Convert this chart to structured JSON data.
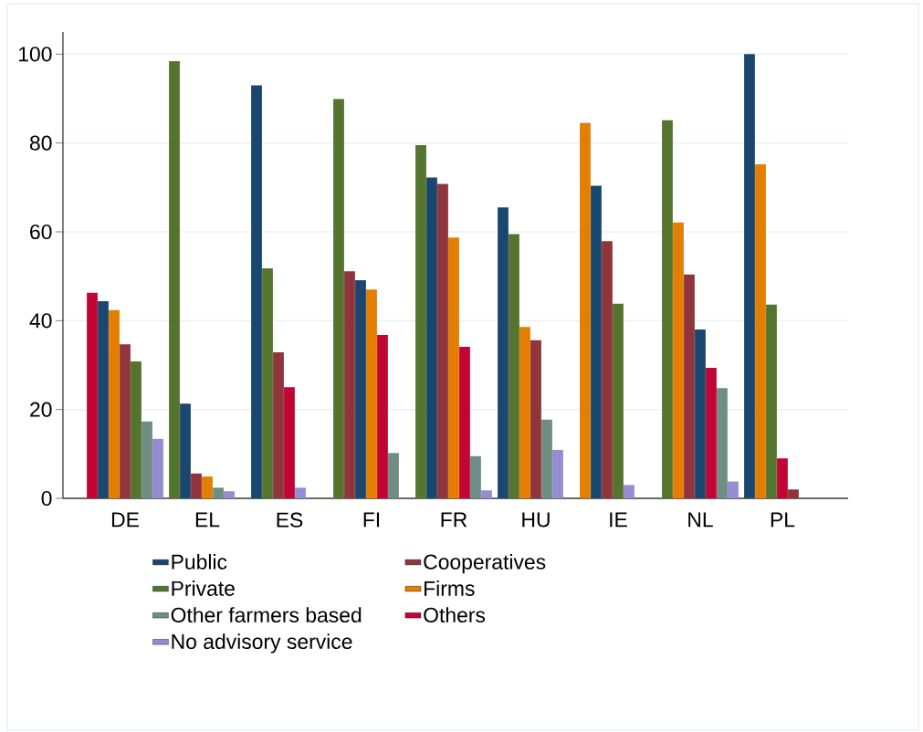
{
  "chart_data": {
    "type": "bar",
    "categories": [
      "DE",
      "EL",
      "ES",
      "FI",
      "FR",
      "HU",
      "IE",
      "NL",
      "PL"
    ],
    "series": [
      {
        "name": "Public",
        "color": "#1a476f",
        "values": [
          44.4,
          21.3,
          93,
          49.1,
          72.2,
          65.5,
          70.4,
          38,
          100
        ]
      },
      {
        "name": "Private",
        "color": "#55752f",
        "values": [
          30.8,
          98.4,
          51.8,
          89.9,
          79.5,
          59.5,
          43.8,
          85.1,
          43.6
        ]
      },
      {
        "name": "Other farmers based",
        "color": "#6e8e84",
        "values": [
          17.3,
          2.4,
          null,
          10.2,
          9.5,
          17.7,
          null,
          24.8,
          null
        ]
      },
      {
        "name": "No advisory service",
        "color": "#938dd2",
        "values": [
          13.4,
          1.6,
          2.4,
          null,
          1.8,
          10.9,
          3,
          3.8,
          null
        ]
      },
      {
        "name": "Cooperatives",
        "color": "#90353b",
        "values": [
          34.7,
          5.6,
          32.9,
          51.1,
          70.8,
          35.6,
          57.9,
          50.4,
          2
        ]
      },
      {
        "name": "Firms",
        "color": "#e37e00",
        "values": [
          42.4,
          4.9,
          null,
          47,
          58.7,
          38.6,
          84.5,
          62.1,
          75.2
        ]
      },
      {
        "name": "Others",
        "color": "#c10534",
        "values": [
          46.3,
          null,
          25,
          36.8,
          34.1,
          null,
          null,
          29.4,
          9
        ]
      }
    ],
    "ylim": [
      0,
      105
    ],
    "yticks": [
      0,
      20,
      40,
      60,
      80,
      100
    ],
    "grid": "y",
    "legend": "bottom"
  }
}
